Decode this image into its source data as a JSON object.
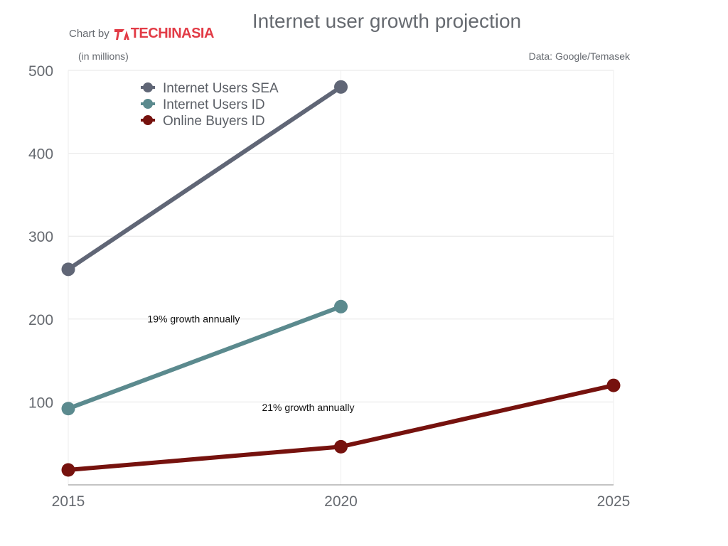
{
  "header": {
    "title": "Internet user growth projection",
    "credit_prefix": "Chart by",
    "brand_name": "TECHINASIA",
    "unit_label": "(in millions)",
    "source": "Data: Google/Temasek"
  },
  "chart_data": {
    "type": "line",
    "title": "Internet user growth projection",
    "xlabel": "",
    "ylabel": "(in millions)",
    "x_ticks": [
      "2015",
      "2020",
      "2025"
    ],
    "y_ticks": [
      100,
      200,
      300,
      400,
      500
    ],
    "xlim": [
      2015,
      2025
    ],
    "ylim": [
      0,
      500
    ],
    "grid": true,
    "legend_position": "top-left",
    "series": [
      {
        "name": "Internet Users SEA",
        "color": "#606676",
        "x": [
          2015,
          2020
        ],
        "y": [
          260,
          480
        ]
      },
      {
        "name": "Internet Users ID",
        "color": "#5b8a8e",
        "x": [
          2015,
          2020
        ],
        "y": [
          92,
          215
        ]
      },
      {
        "name": "Online Buyers ID",
        "color": "#76120e",
        "x": [
          2015,
          2020,
          2025
        ],
        "y": [
          18,
          46,
          120
        ]
      }
    ],
    "annotations": [
      {
        "text": "19% growth annually",
        "x": 2017.3,
        "y": 196
      },
      {
        "text": "21% growth annually",
        "x": 2019.4,
        "y": 89
      }
    ]
  }
}
